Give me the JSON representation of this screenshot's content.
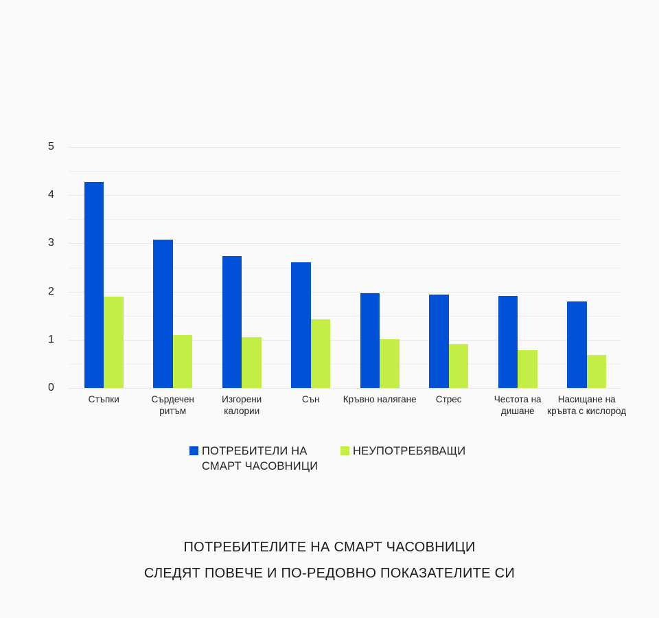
{
  "chart_data": {
    "type": "bar",
    "title": "",
    "xlabel": "",
    "ylabel": "",
    "ylim": [
      0,
      5
    ],
    "yticks": [
      0,
      1,
      2,
      3,
      4,
      5
    ],
    "grid": true,
    "grid_step": 0.5,
    "legend_position": "bottom",
    "categories": [
      "Стъпки",
      "Сърдечен ритъм",
      "Изгорени калории",
      "Сън",
      "Кръвно налягане",
      "Стрес",
      "Честота на дишане",
      "Насищане на кръвта с кислород"
    ],
    "category_label_lines": [
      [
        "Стъпки"
      ],
      [
        "Сърдечен",
        "ритъм"
      ],
      [
        "Изгорени",
        "калории"
      ],
      [
        "Сън"
      ],
      [
        "Кръвно налягане"
      ],
      [
        "Стрес"
      ],
      [
        "Честота на",
        "дишане"
      ],
      [
        "Насищане на",
        "кръвта с кислород"
      ]
    ],
    "series": [
      {
        "name": "ПОТРЕБИТЕЛИ НА СМАРТ ЧАСОВНИЦИ",
        "color": "#0050d8",
        "values": [
          4.28,
          3.08,
          2.74,
          2.61,
          1.96,
          1.94,
          1.91,
          1.79
        ]
      },
      {
        "name": "НЕУПОТРЕБЯВАЩИ",
        "color": "#c3ee46",
        "values": [
          1.89,
          1.09,
          1.06,
          1.43,
          1.01,
          0.91,
          0.79,
          0.68
        ]
      }
    ]
  },
  "legend": {
    "items": [
      {
        "lines": [
          "ПОТРЕБИТЕЛИ НА",
          "СМАРТ ЧАСОВНИЦИ"
        ],
        "color": "#0050d8"
      },
      {
        "lines": [
          "НЕУПОТРЕБЯВАЩИ"
        ],
        "color": "#c3ee46"
      }
    ]
  },
  "caption": {
    "line1": "ПОТРЕБИТЕЛИТЕ НА СМАРТ ЧАСОВНИЦИ",
    "line2": "СЛЕДЯТ ПОВЕЧЕ И ПО-РЕДОВНО ПОКАЗАТЕЛИТЕ СИ"
  }
}
